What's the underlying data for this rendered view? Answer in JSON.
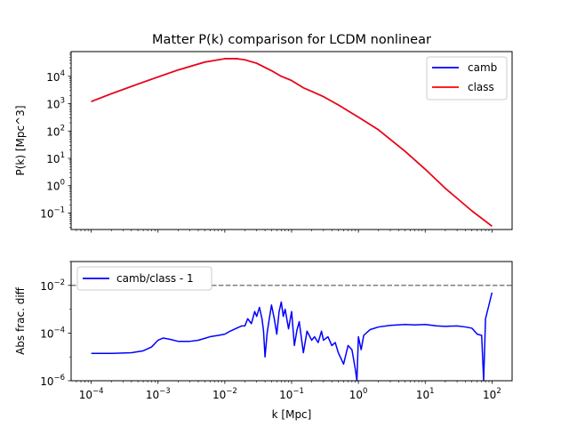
{
  "chart_data": [
    {
      "type": "line",
      "title": "Matter P(k) comparison for LCDM nonlinear",
      "xlabel": "",
      "ylabel": "P(k) [Mpc^3]",
      "xscale": "log",
      "yscale": "log",
      "xlim": [
        5e-05,
        200
      ],
      "ylim": [
        0.025,
        80000
      ],
      "yticks": [
        {
          "value": 0.1,
          "base": "10",
          "exp": "−1"
        },
        {
          "value": 1,
          "base": "10",
          "exp": "0"
        },
        {
          "value": 10,
          "base": "10",
          "exp": "1"
        },
        {
          "value": 100,
          "base": "10",
          "exp": "2"
        },
        {
          "value": 1000,
          "base": "10",
          "exp": "3"
        },
        {
          "value": 10000,
          "base": "10",
          "exp": "4"
        }
      ],
      "legend_position": "upper right",
      "series": [
        {
          "name": "camb",
          "color": "#0000ff",
          "x": [
            0.0001,
            0.0002,
            0.0005,
            0.001,
            0.002,
            0.005,
            0.01,
            0.015,
            0.02,
            0.03,
            0.05,
            0.07,
            0.1,
            0.15,
            0.2,
            0.3,
            0.5,
            1,
            2,
            5,
            10,
            20,
            50,
            100
          ],
          "y": [
            1200,
            2300,
            5200,
            9500,
            17000,
            33000,
            44000,
            44000,
            40000,
            30000,
            16000,
            10000,
            7000,
            3800,
            2800,
            1800,
            900,
            320,
            110,
            18,
            4,
            0.8,
            0.12,
            0.033
          ]
        },
        {
          "name": "class",
          "color": "#ff0000",
          "x": [
            0.0001,
            0.0002,
            0.0005,
            0.001,
            0.002,
            0.005,
            0.01,
            0.015,
            0.02,
            0.03,
            0.05,
            0.07,
            0.1,
            0.15,
            0.2,
            0.3,
            0.5,
            1,
            2,
            5,
            10,
            20,
            50,
            100
          ],
          "y": [
            1200,
            2300,
            5200,
            9500,
            17000,
            33000,
            44000,
            44000,
            40000,
            30000,
            16000,
            10000,
            7000,
            3800,
            2800,
            1800,
            900,
            320,
            110,
            18,
            4,
            0.8,
            0.12,
            0.033
          ]
        }
      ]
    },
    {
      "type": "line",
      "title": "",
      "xlabel": "k [Mpc]",
      "ylabel": "Abs frac. diff",
      "xscale": "log",
      "yscale": "log",
      "xlim": [
        5e-05,
        200
      ],
      "ylim": [
        1e-06,
        0.1
      ],
      "xticks": [
        {
          "value": 0.0001,
          "base": "10",
          "exp": "−4"
        },
        {
          "value": 0.001,
          "base": "10",
          "exp": "−3"
        },
        {
          "value": 0.01,
          "base": "10",
          "exp": "−2"
        },
        {
          "value": 0.1,
          "base": "10",
          "exp": "−1"
        },
        {
          "value": 1,
          "base": "10",
          "exp": "0"
        },
        {
          "value": 10,
          "base": "10",
          "exp": "1"
        },
        {
          "value": 100,
          "base": "10",
          "exp": "2"
        }
      ],
      "yticks": [
        {
          "value": 1e-06,
          "base": "10",
          "exp": "−6"
        },
        {
          "value": 0.0001,
          "base": "10",
          "exp": "−4"
        },
        {
          "value": 0.01,
          "base": "10",
          "exp": "−2"
        }
      ],
      "legend_position": "upper left",
      "reference_line": {
        "y": 0.01,
        "color": "#808080",
        "style": "dashed"
      },
      "series": [
        {
          "name": "camb/class - 1",
          "color": "#0000ff",
          "x": [
            0.0001,
            0.0002,
            0.0004,
            0.0006,
            0.0008,
            0.001,
            0.0012,
            0.0015,
            0.002,
            0.003,
            0.004,
            0.005,
            0.006,
            0.008,
            0.01,
            0.012,
            0.015,
            0.018,
            0.02,
            0.022,
            0.025,
            0.028,
            0.03,
            0.033,
            0.036,
            0.038,
            0.04,
            0.043,
            0.046,
            0.05,
            0.055,
            0.06,
            0.065,
            0.07,
            0.075,
            0.08,
            0.09,
            0.1,
            0.11,
            0.12,
            0.13,
            0.15,
            0.17,
            0.2,
            0.22,
            0.25,
            0.28,
            0.3,
            0.35,
            0.4,
            0.45,
            0.5,
            0.6,
            0.7,
            0.8,
            0.9,
            0.95,
            1.0,
            1.1,
            1.2,
            1.5,
            2,
            3,
            5,
            7,
            10,
            15,
            20,
            30,
            40,
            50,
            60,
            70,
            75,
            80,
            90,
            100
          ],
          "y": [
            1.4e-05,
            1.4e-05,
            1.5e-05,
            1.8e-05,
            2.6e-05,
            5e-05,
            6.2e-05,
            5.5e-05,
            4.5e-05,
            4.5e-05,
            5e-05,
            6e-05,
            7e-05,
            8e-05,
            9e-05,
            0.00012,
            0.00016,
            0.0002,
            0.0002,
            0.0004,
            0.00025,
            0.0008,
            0.0005,
            0.0012,
            0.0004,
            0.00012,
            1e-05,
            0.0001,
            0.00035,
            0.0015,
            0.0004,
            9e-05,
            0.0008,
            0.002,
            0.0005,
            0.001,
            0.00015,
            0.0008,
            3e-05,
            0.00013,
            0.0003,
            1.5e-05,
            0.00012,
            5e-05,
            7e-05,
            4e-05,
            0.00012,
            5e-05,
            7e-05,
            3e-05,
            4e-05,
            1.5e-05,
            5e-06,
            3e-05,
            2e-05,
            3e-06,
            1e-06,
            7e-05,
            2e-05,
            8e-05,
            0.00014,
            0.00018,
            0.00021,
            0.00023,
            0.00022,
            0.00023,
            0.0002,
            0.00019,
            0.0002,
            0.00018,
            0.00016,
            9e-05,
            8e-05,
            1e-06,
            0.0004,
            0.0015,
            0.005
          ]
        }
      ]
    }
  ]
}
